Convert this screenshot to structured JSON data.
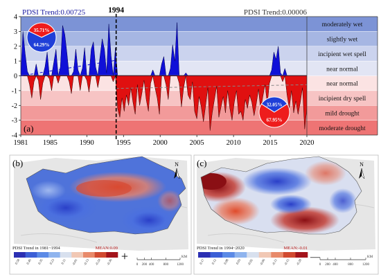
{
  "chart_data": [
    {
      "type": "area",
      "panel_label": "(a)",
      "title_left": "PDSI Trend:0.00725",
      "title_right": "PDSI Trend:0.00006",
      "breakpoint_label": "1994",
      "breakpoint_year": 1994,
      "xlim": [
        1981,
        2020
      ],
      "ylim": [
        -4,
        4
      ],
      "x_ticks": [
        1981,
        1985,
        1990,
        1995,
        2000,
        2005,
        2010,
        2015,
        2020
      ],
      "y_ticks": [
        4,
        3,
        2,
        1,
        0,
        -1,
        -2,
        -3,
        -4
      ],
      "grid": false,
      "bands": [
        {
          "label": "moderately wet",
          "from": 3,
          "to": 4,
          "color": "#7c93d6"
        },
        {
          "label": "slightly wet",
          "from": 2,
          "to": 3,
          "color": "#a6b6e3"
        },
        {
          "label": "incipient wet spell",
          "from": 1,
          "to": 2,
          "color": "#cbd3ee"
        },
        {
          "label": "near normal",
          "from": 0,
          "to": 1,
          "color": "#e2e5f4"
        },
        {
          "label": "near normal",
          "from": -1,
          "to": 0,
          "color": "#fbe3e3"
        },
        {
          "label": "incipient dry spell",
          "from": -2,
          "to": -1,
          "color": "#f7c4c4"
        },
        {
          "label": "mild drought",
          "from": -3,
          "to": -2,
          "color": "#f29a9a"
        },
        {
          "label": "moderate drought",
          "from": -4,
          "to": -3,
          "color": "#ee7474"
        }
      ],
      "positive_color": "#1010d8",
      "negative_color": "#e01010",
      "series": [
        {
          "x": [
            1981.0,
            1981.3,
            1981.6,
            1981.9,
            1982.2,
            1982.5,
            1982.8,
            1983.1,
            1983.4,
            1983.7,
            1984.0,
            1984.3,
            1984.6,
            1984.9,
            1985.2,
            1985.5,
            1985.8,
            1986.1,
            1986.4,
            1986.7,
            1987.0,
            1987.3,
            1987.6,
            1987.9,
            1988.2,
            1988.5,
            1988.8,
            1989.1,
            1989.4,
            1989.7,
            1990.0,
            1990.3,
            1990.6,
            1990.9,
            1991.2,
            1991.5,
            1991.8,
            1992.1,
            1992.4,
            1992.7,
            1993.0,
            1993.3,
            1993.6,
            1993.9,
            1994.2,
            1994.5,
            1994.8,
            1995.1,
            1995.4,
            1995.7,
            1996.0,
            1996.3,
            1996.6,
            1996.9,
            1997.2,
            1997.5,
            1997.8,
            1998.1,
            1998.4,
            1998.7,
            1999.0,
            1999.3,
            1999.6,
            1999.9,
            2000.2,
            2000.5,
            2000.8,
            2001.1,
            2001.4,
            2001.7,
            2002.0,
            2002.3,
            2002.6,
            2002.9,
            2003.2,
            2003.5,
            2003.8,
            2004.1,
            2004.4,
            2004.7,
            2005.0,
            2005.3,
            2005.6,
            2005.9,
            2006.2,
            2006.5,
            2006.8,
            2007.1,
            2007.4,
            2007.7,
            2008.0,
            2008.3,
            2008.6,
            2008.9,
            2009.2,
            2009.5,
            2009.8,
            2010.1,
            2010.4,
            2010.7,
            2011.0,
            2011.3,
            2011.6,
            2011.9,
            2012.2,
            2012.5,
            2012.8,
            2013.1,
            2013.4,
            2013.7,
            2014.0,
            2014.3,
            2014.6,
            2014.9,
            2015.2,
            2015.5,
            2015.8,
            2016.1,
            2016.4,
            2016.7,
            2017.0,
            2017.3,
            2017.6,
            2017.9,
            2018.2,
            2018.5,
            2018.8,
            2019.1,
            2019.4,
            2019.7,
            2020.0
          ],
          "y": [
            0.2,
            3.0,
            1.5,
            0.3,
            -0.6,
            -1.5,
            -0.4,
            0.8,
            -0.3,
            -1.6,
            -0.5,
            0.6,
            1.6,
            -0.2,
            -1.0,
            0.9,
            1.8,
            -0.5,
            0.6,
            3.4,
            2.8,
            1.5,
            -0.4,
            -1.2,
            0.3,
            1.8,
            0.4,
            -1.0,
            0.5,
            1.9,
            -0.3,
            -1.1,
            1.8,
            2.3,
            0.6,
            -0.8,
            1.3,
            2.5,
            1.8,
            0.2,
            3.5,
            1.4,
            -0.4,
            1.9,
            -2.2,
            -2.8,
            -1.5,
            -2.4,
            -1.3,
            -2.0,
            -0.8,
            -1.8,
            -2.6,
            -0.6,
            -2.0,
            -1.2,
            -0.3,
            -1.6,
            -2.4,
            -0.5,
            0.4,
            -0.8,
            -1.5,
            -2.6,
            0.8,
            1.3,
            -0.6,
            -1.6,
            0.5,
            2.1,
            1.0,
            3.6,
            -0.5,
            -2.1,
            -0.8,
            0.2,
            -1.3,
            -1.6,
            -0.4,
            -2.4,
            -2.9,
            -1.4,
            -2.1,
            -3.1,
            -2.0,
            -0.8,
            -3.7,
            -2.5,
            -1.6,
            -0.7,
            -2.8,
            -2.1,
            -1.4,
            -2.5,
            -1.0,
            -2.2,
            -3.0,
            -1.8,
            -1.0,
            -2.6,
            -2.4,
            -3.0,
            -1.6,
            -2.2,
            -1.3,
            -1.8,
            -2.7,
            -1.9,
            -0.9,
            -2.3,
            -1.4,
            -0.6,
            -1.9,
            -0.5,
            0.4,
            1.6,
            1.1,
            2.0,
            0.2,
            -0.4,
            0.5,
            -1.3,
            -2.2,
            -1.0,
            -2.5,
            -1.7,
            -2.6,
            -1.8,
            -0.8,
            -3.6,
            -2.2
          ]
        }
      ],
      "trend_lines": [
        {
          "name": "",
          "x": [
            1981,
            1994
          ],
          "y": [
            0.0,
            1.05
          ],
          "color": "#1010d8",
          "style": "dashed"
        },
        {
          "name": "",
          "x": [
            1994,
            2020
          ],
          "y": [
            -0.85,
            -0.6
          ],
          "color": "#888888",
          "style": "dashed"
        }
      ],
      "pies": [
        {
          "position": "top-left",
          "slices": [
            {
              "label": "35.71%",
              "value": 35.71,
              "color": "#ee1c1c"
            },
            {
              "label": "64.29%",
              "value": 64.29,
              "color": "#1f3fd8"
            }
          ]
        },
        {
          "position": "bottom-right",
          "slices": [
            {
              "label": "32.05%",
              "value": 32.05,
              "color": "#1f3fd8"
            },
            {
              "label": "67.95%",
              "value": 67.95,
              "color": "#ee1c1c"
            }
          ]
        }
      ]
    },
    {
      "type": "heatmap",
      "panel_label": "(b)",
      "caption": "PDSI Trend in 1981~1994",
      "mean_label": "MEAN:0.09",
      "sign": "+",
      "legend_ticks": [
        "0.58",
        "0.46",
        "0.35",
        "0.23",
        "0.11",
        "-0.01",
        "-0.13",
        "-0.24",
        "-0.36"
      ],
      "legend_colors": [
        "#2b2fb3",
        "#3c5fd6",
        "#5b8ae6",
        "#8fb4ee",
        "#d8e0ee",
        "#f1c8b4",
        "#e88a6a",
        "#d14a30",
        "#a3141b"
      ],
      "north_label": "N",
      "scale_unit": "KM",
      "scale_ticks": [
        "0",
        "200",
        "400",
        "800",
        "1200"
      ]
    },
    {
      "type": "heatmap",
      "panel_label": "(c)",
      "caption": "PDSI Trend in 1994~2020",
      "mean_label": "MEAN:-0.01",
      "sign": "—",
      "legend_ticks": [
        "0.17",
        "0.12",
        "0.08",
        "0.03",
        "-0.02",
        "-0.06",
        "-0.11",
        "-0.15",
        "-0.20"
      ],
      "legend_colors": [
        "#2b2fb3",
        "#3c5fd6",
        "#5b8ae6",
        "#8fb4ee",
        "#d8e0ee",
        "#f1c8b4",
        "#e88a6a",
        "#d14a30",
        "#a3141b"
      ],
      "north_label": "N",
      "scale_unit": "KM",
      "scale_ticks": [
        "0",
        "200",
        "400",
        "800",
        "1200"
      ]
    }
  ]
}
